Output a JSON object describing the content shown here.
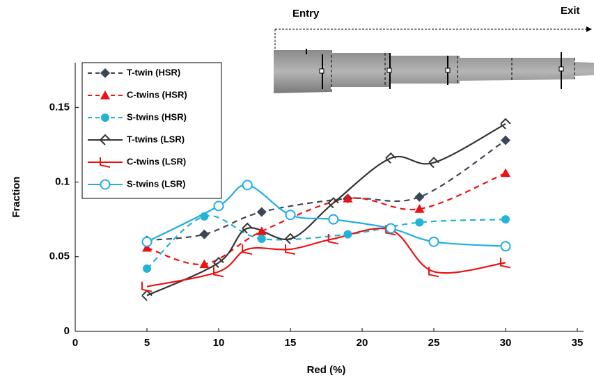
{
  "chart_data": {
    "type": "line",
    "xlabel": "Red (%)",
    "ylabel": "Fraction",
    "annotations": [
      "Entry",
      "Exit"
    ],
    "xlim": [
      0,
      35
    ],
    "xticks": [
      0,
      5,
      10,
      15,
      20,
      25,
      30,
      35
    ],
    "ylim": [
      0,
      0.18
    ],
    "yticks": [
      0,
      0.05,
      0.1,
      0.15
    ],
    "legend": "upper left",
    "series": [
      {
        "name": "T-twin (HSR)",
        "color": "#3c4656",
        "marker": "diamond",
        "dashed": true,
        "x": [
          5,
          9,
          13,
          19,
          24,
          30
        ],
        "values": [
          0.061,
          0.065,
          0.08,
          0.089,
          0.09,
          0.128
        ]
      },
      {
        "name": "C-twins (HSR)",
        "color": "#ee1111",
        "marker": "triangle",
        "dashed": true,
        "x": [
          5,
          9,
          13,
          19,
          24,
          30
        ],
        "values": [
          0.056,
          0.045,
          0.067,
          0.089,
          0.082,
          0.106
        ]
      },
      {
        "name": "S-twins (HSR)",
        "color": "#22b4d4",
        "marker": "circle",
        "dashed": true,
        "x": [
          5,
          9,
          13,
          19,
          24,
          30
        ],
        "values": [
          0.042,
          0.077,
          0.062,
          0.065,
          0.073,
          0.075
        ]
      },
      {
        "name": "T-twins (LSR)",
        "color": "#333333",
        "marker": "open-diamond",
        "dashed": false,
        "x": [
          5,
          10,
          12,
          15,
          18,
          22,
          25,
          30
        ],
        "values": [
          0.024,
          0.046,
          0.069,
          0.062,
          0.086,
          0.116,
          0.113,
          0.139
        ]
      },
      {
        "name": "C-twins (LSR)",
        "color": "#ee1111",
        "marker": "open-angle",
        "dashed": false,
        "x": [
          5,
          10,
          12,
          15,
          18,
          22,
          25,
          30
        ],
        "values": [
          0.03,
          0.04,
          0.055,
          0.055,
          0.062,
          0.068,
          0.04,
          0.046
        ]
      },
      {
        "name": "S-twins (LSR)",
        "color": "#1caee8",
        "marker": "open-circle",
        "dashed": false,
        "x": [
          5,
          10,
          12,
          15,
          18,
          22,
          25,
          30
        ],
        "values": [
          0.06,
          0.084,
          0.098,
          0.078,
          0.075,
          0.069,
          0.06,
          0.057
        ]
      }
    ]
  }
}
